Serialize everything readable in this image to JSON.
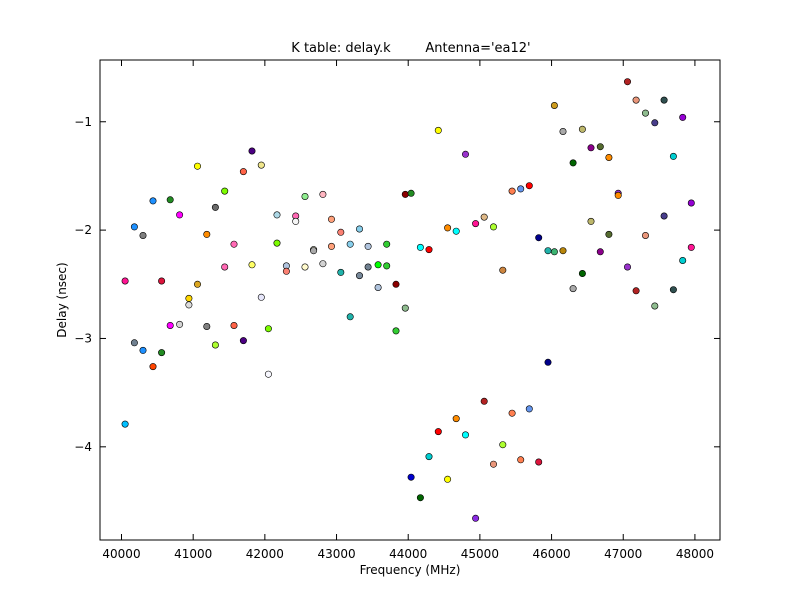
{
  "chart_data": {
    "type": "scatter",
    "title": "K table: delay.k",
    "subtitle": "Antenna='ea12'",
    "xlabel": "Frequency (MHz)",
    "ylabel": "Delay (nsec)",
    "xlim": [
      39700,
      48350
    ],
    "ylim": [
      -4.86,
      -0.43
    ],
    "xticks": [
      40000,
      41000,
      42000,
      43000,
      44000,
      45000,
      46000,
      47000,
      48000
    ],
    "xtick_labels": [
      "40000",
      "41000",
      "42000",
      "43000",
      "44000",
      "45000",
      "46000",
      "47000",
      "48000"
    ],
    "yticks": [
      -4,
      -3,
      -2,
      -1
    ],
    "ytick_labels": [
      "−4",
      "−3",
      "−2",
      "−1"
    ],
    "grid": false,
    "legend": "none",
    "points": [
      {
        "x": 40050,
        "y": -2.47,
        "color": "#ff1493"
      },
      {
        "x": 40050,
        "y": -3.79,
        "color": "#00bfff"
      },
      {
        "x": 40180,
        "y": -1.97,
        "color": "#1e90ff"
      },
      {
        "x": 40180,
        "y": -3.04,
        "color": "#708090"
      },
      {
        "x": 40300,
        "y": -2.05,
        "color": "#808080"
      },
      {
        "x": 40300,
        "y": -3.11,
        "color": "#1e90ff"
      },
      {
        "x": 40440,
        "y": -1.73,
        "color": "#1e90ff"
      },
      {
        "x": 40440,
        "y": -3.26,
        "color": "#ff4500"
      },
      {
        "x": 40560,
        "y": -2.47,
        "color": "#dc143c"
      },
      {
        "x": 40560,
        "y": -3.13,
        "color": "#228b22"
      },
      {
        "x": 40680,
        "y": -1.72,
        "color": "#228b22"
      },
      {
        "x": 40680,
        "y": -2.88,
        "color": "#ff00ff"
      },
      {
        "x": 40810,
        "y": -1.86,
        "color": "#ff00ff"
      },
      {
        "x": 40810,
        "y": -2.87,
        "color": "#d3d3d3"
      },
      {
        "x": 40940,
        "y": -2.63,
        "color": "#ffd700"
      },
      {
        "x": 40940,
        "y": -2.69,
        "color": "#dcdcdc"
      },
      {
        "x": 41060,
        "y": -1.41,
        "color": "#ffff00"
      },
      {
        "x": 41060,
        "y": -2.5,
        "color": "#daa520"
      },
      {
        "x": 41190,
        "y": -2.04,
        "color": "#ff8c00"
      },
      {
        "x": 41190,
        "y": -2.89,
        "color": "#808080"
      },
      {
        "x": 41310,
        "y": -1.79,
        "color": "#696969"
      },
      {
        "x": 41310,
        "y": -3.06,
        "color": "#adff2f"
      },
      {
        "x": 41440,
        "y": -1.64,
        "color": "#7cfc00"
      },
      {
        "x": 41440,
        "y": -2.34,
        "color": "#ff69b4"
      },
      {
        "x": 41570,
        "y": -2.13,
        "color": "#ff69b4"
      },
      {
        "x": 41570,
        "y": -2.88,
        "color": "#ff6347"
      },
      {
        "x": 41700,
        "y": -1.46,
        "color": "#ff6347"
      },
      {
        "x": 41700,
        "y": -3.02,
        "color": "#4b0082"
      },
      {
        "x": 41820,
        "y": -1.27,
        "color": "#4b0082"
      },
      {
        "x": 41820,
        "y": -2.32,
        "color": "#ffff66"
      },
      {
        "x": 41950,
        "y": -1.4,
        "color": "#f0e68c"
      },
      {
        "x": 41950,
        "y": -2.62,
        "color": "#e6e6fa"
      },
      {
        "x": 42050,
        "y": -2.91,
        "color": "#7cfc00"
      },
      {
        "x": 42050,
        "y": -3.33,
        "color": "#f8f8ff"
      },
      {
        "x": 42170,
        "y": -1.86,
        "color": "#add8e6"
      },
      {
        "x": 42170,
        "y": -2.12,
        "color": "#7cfc00"
      },
      {
        "x": 42300,
        "y": -2.33,
        "color": "#b0c4de"
      },
      {
        "x": 42300,
        "y": -2.38,
        "color": "#fa8072"
      },
      {
        "x": 42430,
        "y": -1.87,
        "color": "#ff69b4"
      },
      {
        "x": 42430,
        "y": -1.92,
        "color": "#f5f5f5"
      },
      {
        "x": 42560,
        "y": -1.69,
        "color": "#90ee90"
      },
      {
        "x": 42560,
        "y": -2.34,
        "color": "#fffacd"
      },
      {
        "x": 42680,
        "y": -2.18,
        "color": "#f5f5dc"
      },
      {
        "x": 42680,
        "y": -2.19,
        "color": "#a9a9a9"
      },
      {
        "x": 42810,
        "y": -1.67,
        "color": "#ffb6c1"
      },
      {
        "x": 42810,
        "y": -2.31,
        "color": "#d3d3d3"
      },
      {
        "x": 42930,
        "y": -1.9,
        "color": "#ffa07a"
      },
      {
        "x": 42930,
        "y": -2.15,
        "color": "#ffa07a"
      },
      {
        "x": 43060,
        "y": -2.02,
        "color": "#fa8072"
      },
      {
        "x": 43060,
        "y": -2.39,
        "color": "#20b2aa"
      },
      {
        "x": 43190,
        "y": -2.13,
        "color": "#87ceeb"
      },
      {
        "x": 43190,
        "y": -2.8,
        "color": "#20b2aa"
      },
      {
        "x": 43320,
        "y": -1.99,
        "color": "#87ceeb"
      },
      {
        "x": 43320,
        "y": -2.42,
        "color": "#778899"
      },
      {
        "x": 43440,
        "y": -2.15,
        "color": "#b0c4de"
      },
      {
        "x": 43440,
        "y": -2.34,
        "color": "#708090"
      },
      {
        "x": 43580,
        "y": -2.32,
        "color": "#00ff00"
      },
      {
        "x": 43580,
        "y": -2.53,
        "color": "#b0c4de"
      },
      {
        "x": 43700,
        "y": -2.13,
        "color": "#32cd32"
      },
      {
        "x": 43700,
        "y": -2.33,
        "color": "#32cd32"
      },
      {
        "x": 43830,
        "y": -2.5,
        "color": "#8b0000"
      },
      {
        "x": 43830,
        "y": -2.93,
        "color": "#32cd32"
      },
      {
        "x": 43960,
        "y": -1.67,
        "color": "#8b0000"
      },
      {
        "x": 43960,
        "y": -2.72,
        "color": "#8fbc8f"
      },
      {
        "x": 44040,
        "y": -1.66,
        "color": "#228b22"
      },
      {
        "x": 44040,
        "y": -4.28,
        "color": "#0000cd"
      },
      {
        "x": 44170,
        "y": -2.16,
        "color": "#00ffff"
      },
      {
        "x": 44170,
        "y": -4.47,
        "color": "#006400"
      },
      {
        "x": 44290,
        "y": -2.18,
        "color": "#ff0000"
      },
      {
        "x": 44290,
        "y": -4.09,
        "color": "#00ced1"
      },
      {
        "x": 44420,
        "y": -1.08,
        "color": "#ffff00"
      },
      {
        "x": 44420,
        "y": -3.86,
        "color": "#ff0000"
      },
      {
        "x": 44550,
        "y": -1.98,
        "color": "#ff8c00"
      },
      {
        "x": 44550,
        "y": -4.3,
        "color": "#ffff00"
      },
      {
        "x": 44670,
        "y": -2.01,
        "color": "#00ffff"
      },
      {
        "x": 44670,
        "y": -3.74,
        "color": "#ff8c00"
      },
      {
        "x": 44800,
        "y": -1.3,
        "color": "#9932cc"
      },
      {
        "x": 44800,
        "y": -3.89,
        "color": "#00ffff"
      },
      {
        "x": 44940,
        "y": -1.94,
        "color": "#ff1493"
      },
      {
        "x": 44940,
        "y": -4.66,
        "color": "#8a2be2"
      },
      {
        "x": 45060,
        "y": -1.88,
        "color": "#deb887"
      },
      {
        "x": 45060,
        "y": -3.58,
        "color": "#b22222"
      },
      {
        "x": 45190,
        "y": -1.97,
        "color": "#adff2f"
      },
      {
        "x": 45190,
        "y": -4.16,
        "color": "#e9967a"
      },
      {
        "x": 45320,
        "y": -2.37,
        "color": "#cd853f"
      },
      {
        "x": 45320,
        "y": -3.98,
        "color": "#adff2f"
      },
      {
        "x": 45450,
        "y": -1.64,
        "color": "#ff7f50"
      },
      {
        "x": 45450,
        "y": -3.69,
        "color": "#ff7f50"
      },
      {
        "x": 45570,
        "y": -1.62,
        "color": "#6495ed"
      },
      {
        "x": 45570,
        "y": -4.12,
        "color": "#ff7f50"
      },
      {
        "x": 45690,
        "y": -1.59,
        "color": "#ff0000"
      },
      {
        "x": 45690,
        "y": -3.65,
        "color": "#6495ed"
      },
      {
        "x": 45820,
        "y": -2.07,
        "color": "#00008b"
      },
      {
        "x": 45820,
        "y": -4.14,
        "color": "#dc143c"
      },
      {
        "x": 45950,
        "y": -2.19,
        "color": "#20b2aa"
      },
      {
        "x": 45950,
        "y": -3.22,
        "color": "#00008b"
      },
      {
        "x": 46040,
        "y": -0.85,
        "color": "#cd9b1d"
      },
      {
        "x": 46040,
        "y": -2.2,
        "color": "#3cb371"
      },
      {
        "x": 46160,
        "y": -1.09,
        "color": "#a9a9a9"
      },
      {
        "x": 46160,
        "y": -2.19,
        "color": "#b8860b"
      },
      {
        "x": 46300,
        "y": -1.38,
        "color": "#006400"
      },
      {
        "x": 46300,
        "y": -2.54,
        "color": "#a9a9a9"
      },
      {
        "x": 46430,
        "y": -1.07,
        "color": "#bdb76b"
      },
      {
        "x": 46430,
        "y": -2.4,
        "color": "#006400"
      },
      {
        "x": 46550,
        "y": -1.24,
        "color": "#8b008b"
      },
      {
        "x": 46550,
        "y": -1.92,
        "color": "#bdb76b"
      },
      {
        "x": 46680,
        "y": -1.23,
        "color": "#556b2f"
      },
      {
        "x": 46680,
        "y": -2.2,
        "color": "#8b008b"
      },
      {
        "x": 46800,
        "y": -1.33,
        "color": "#ff8c00"
      },
      {
        "x": 46800,
        "y": -2.04,
        "color": "#556b2f"
      },
      {
        "x": 46930,
        "y": -1.66,
        "color": "#9932cc"
      },
      {
        "x": 46930,
        "y": -1.68,
        "color": "#ff8c00"
      },
      {
        "x": 47060,
        "y": -0.63,
        "color": "#b22222"
      },
      {
        "x": 47060,
        "y": -2.34,
        "color": "#9932cc"
      },
      {
        "x": 47180,
        "y": -0.8,
        "color": "#e9967a"
      },
      {
        "x": 47180,
        "y": -2.56,
        "color": "#b22222"
      },
      {
        "x": 47310,
        "y": -0.92,
        "color": "#8fbc8f"
      },
      {
        "x": 47310,
        "y": -2.05,
        "color": "#e9967a"
      },
      {
        "x": 47440,
        "y": -1.01,
        "color": "#483d8b"
      },
      {
        "x": 47440,
        "y": -2.7,
        "color": "#8fbc8f"
      },
      {
        "x": 47570,
        "y": -0.8,
        "color": "#2f4f4f"
      },
      {
        "x": 47570,
        "y": -1.87,
        "color": "#483d8b"
      },
      {
        "x": 47700,
        "y": -1.32,
        "color": "#00ced1"
      },
      {
        "x": 47700,
        "y": -2.55,
        "color": "#2f4f4f"
      },
      {
        "x": 47830,
        "y": -0.96,
        "color": "#9400d3"
      },
      {
        "x": 47830,
        "y": -2.28,
        "color": "#00ced1"
      },
      {
        "x": 47950,
        "y": -1.75,
        "color": "#9400d3"
      },
      {
        "x": 47950,
        "y": -2.16,
        "color": "#ff1493"
      }
    ]
  }
}
